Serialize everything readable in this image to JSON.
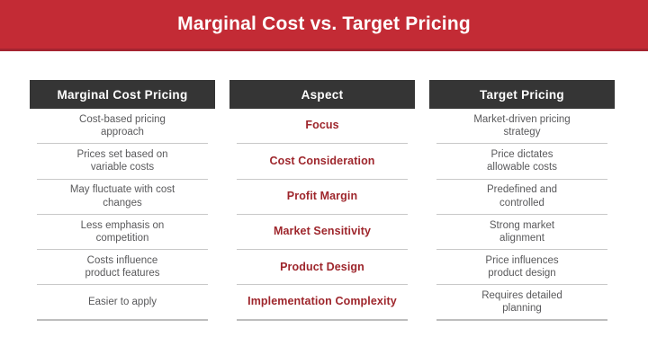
{
  "slide": {
    "title": "Marginal Cost vs. Target Pricing"
  },
  "colors": {
    "banner_red": "#C32B35",
    "banner_red_dark": "#A52430",
    "header_dark": "#353535",
    "aspect_red": "#9E262C",
    "body_gray": "#59595B",
    "divider_gray": "#C9C9C9"
  },
  "table": {
    "columns": [
      {
        "header": "Marginal Cost Pricing",
        "cells": [
          "Cost-based pricing\napproach",
          "Prices set based on\nvariable costs",
          "May fluctuate with cost\nchanges",
          "Less emphasis on\ncompetition",
          "Costs influence\nproduct features",
          "Easier to apply"
        ]
      },
      {
        "header": "Aspect",
        "cells": [
          "Focus",
          "Cost Consideration",
          "Profit Margin",
          "Market Sensitivity",
          "Product Design",
          "Implementation Complexity"
        ]
      },
      {
        "header": "Target Pricing",
        "cells": [
          "Market-driven pricing\nstrategy",
          "Price dictates\nallowable costs",
          "Predefined and\ncontrolled",
          "Strong market\nalignment",
          "Price influences\nproduct design",
          "Requires detailed\nplanning"
        ]
      }
    ]
  }
}
